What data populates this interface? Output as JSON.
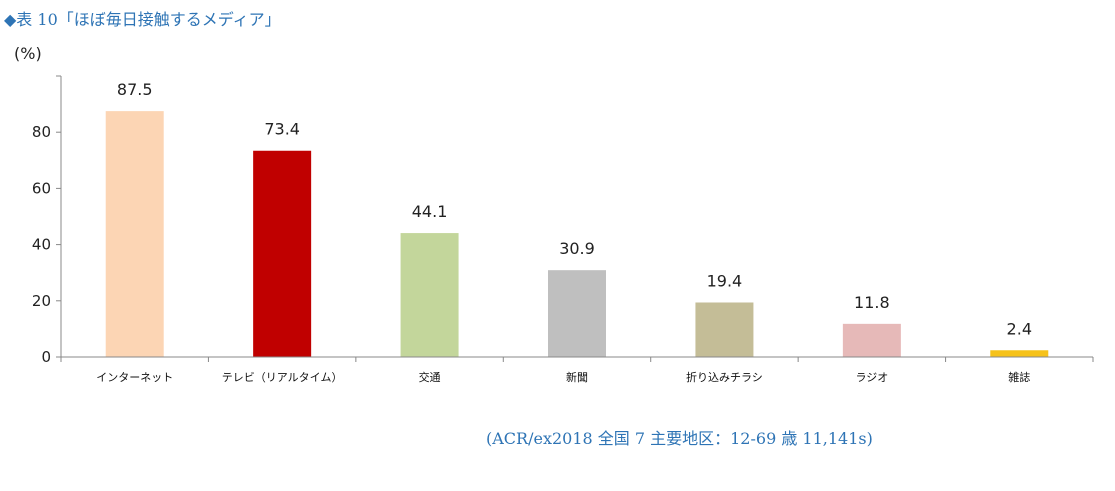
{
  "title": "◆表 10「ほぼ毎日接触するメディア」",
  "source_note": "(ACR/ex2018 全国 7 主要地区：12-69 歳 11,141s)",
  "chart_data": {
    "type": "bar",
    "unit_label": "(%)",
    "categories": [
      "インターネット",
      "テレビ（リアルタイム）",
      "交通",
      "新聞",
      "折り込みチラシ",
      "ラジオ",
      "雑誌"
    ],
    "values": [
      87.5,
      73.4,
      44.1,
      30.9,
      19.4,
      11.8,
      2.4
    ],
    "value_labels": [
      "87.5",
      "73.4",
      "44.1",
      "30.9",
      "19.4",
      "11.8",
      "2.4"
    ],
    "colors": [
      "#fcd5b4",
      "#c00000",
      "#c3d69b",
      "#bfbfbf",
      "#c4bd97",
      "#e6b9b8",
      "#f6c21a"
    ],
    "yticks": [
      0,
      20,
      40,
      60,
      80
    ],
    "ylim": [
      0,
      100
    ],
    "grid": false,
    "legend": "none"
  }
}
